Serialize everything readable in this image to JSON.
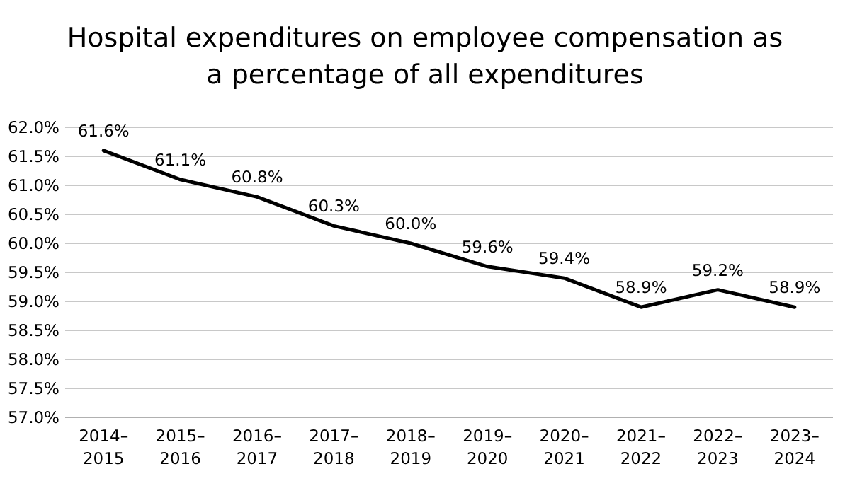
{
  "chart_data": {
    "type": "line",
    "title": "Hospital expenditures on employee compensation as a percentage of all expenditures",
    "categories": [
      "2014–2015",
      "2015–2016",
      "2016–2017",
      "2017–2018",
      "2018–2019",
      "2019–2020",
      "2020–2021",
      "2021–2022",
      "2022–2023",
      "2023–2024"
    ],
    "series": [
      {
        "color": "#000000",
        "values": [
          61.6,
          61.1,
          60.8,
          60.3,
          60.0,
          59.6,
          59.4,
          58.9,
          59.2,
          58.9
        ],
        "value_labels": [
          "61.6%",
          "61.1%",
          "60.8%",
          "60.3%",
          "60.0%",
          "59.6%",
          "59.4%",
          "58.9%",
          "59.2%",
          "58.9%"
        ]
      }
    ],
    "ylim": [
      57,
      62
    ],
    "yticks": [
      {
        "value": 57,
        "label": "57.0%"
      },
      {
        "value": 57.5,
        "label": "57.5%"
      },
      {
        "value": 58,
        "label": "58.0%"
      },
      {
        "value": 58.5,
        "label": "58.5%"
      },
      {
        "value": 59,
        "label": "59.0%"
      },
      {
        "value": 59.5,
        "label": "59.5%"
      },
      {
        "value": 60,
        "label": "60.0%"
      },
      {
        "value": 60.5,
        "label": "60.5%"
      },
      {
        "value": 61,
        "label": "61.0%"
      },
      {
        "value": 61.5,
        "label": "61.5%"
      },
      {
        "value": 62,
        "label": "62.0%"
      }
    ],
    "grid": "y",
    "marker": "none",
    "line_style": "solid"
  }
}
